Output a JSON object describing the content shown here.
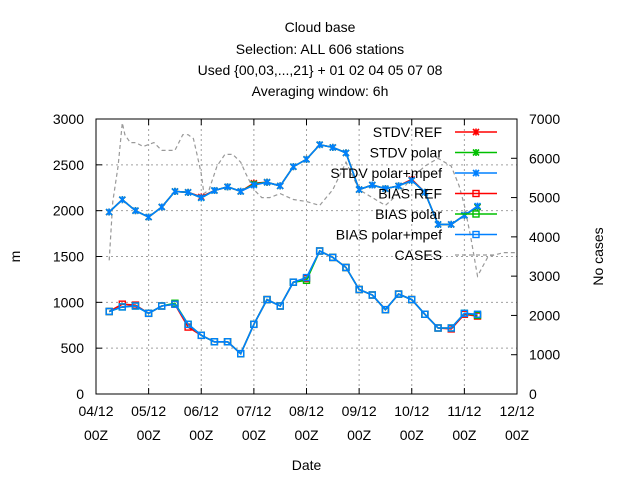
{
  "chart_data": {
    "type": "line",
    "title_lines": [
      "Cloud base",
      "Selection: ALL    606 stations",
      "Used {00,03,...,21} + 01 02 04 05 07 08",
      "Averaging window:  6h"
    ],
    "xlabel": "Date",
    "ylabel": "m",
    "y2label": "No cases",
    "x_ticks": [
      {
        "line1": "04/12",
        "line2": "00Z",
        "t": 0
      },
      {
        "line1": "05/12",
        "line2": "00Z",
        "t": 1
      },
      {
        "line1": "06/12",
        "line2": "00Z",
        "t": 2
      },
      {
        "line1": "07/12",
        "line2": "00Z",
        "t": 3
      },
      {
        "line1": "08/12",
        "line2": "00Z",
        "t": 4
      },
      {
        "line1": "09/12",
        "line2": "00Z",
        "t": 5
      },
      {
        "line1": "10/12",
        "line2": "00Z",
        "t": 6
      },
      {
        "line1": "11/12",
        "line2": "00Z",
        "t": 7
      },
      {
        "line1": "12/12",
        "line2": "00Z",
        "t": 8
      }
    ],
    "xlim": [
      0,
      8
    ],
    "ylim": [
      0,
      3000
    ],
    "y_ticks": [
      0,
      500,
      1000,
      1500,
      2000,
      2500,
      3000
    ],
    "y2lim": [
      0,
      7000
    ],
    "y2_ticks": [
      0,
      1000,
      2000,
      3000,
      4000,
      5000,
      6000,
      7000
    ],
    "grid": true,
    "legend_position": "top-right",
    "x_times": [
      0.25,
      0.5,
      0.75,
      1.0,
      1.25,
      1.5,
      1.75,
      2.0,
      2.25,
      2.5,
      2.75,
      3.0,
      3.25,
      3.5,
      3.75,
      4.0,
      4.25,
      4.5,
      4.75,
      5.0,
      5.25,
      5.5,
      5.75,
      6.0,
      6.25,
      6.5,
      6.75,
      7.0,
      7.25
    ],
    "series": [
      {
        "name": "STDV REF",
        "color": "#ff0000",
        "marker": "x",
        "axis": "y1",
        "values": [
          1985,
          2120,
          2000,
          1930,
          2040,
          2210,
          2200,
          2150,
          2220,
          2260,
          2210,
          2300,
          2310,
          2270,
          2480,
          2560,
          2720,
          2690,
          2630,
          2230,
          2280,
          2240,
          2270,
          2340,
          2200,
          1850,
          1850,
          1950,
          2040
        ]
      },
      {
        "name": "STDV polar",
        "color": "#00c000",
        "marker": "x",
        "axis": "y1",
        "values": [
          1985,
          2120,
          2000,
          1930,
          2040,
          2210,
          2200,
          2140,
          2220,
          2260,
          2210,
          2290,
          2310,
          2270,
          2480,
          2560,
          2720,
          2690,
          2630,
          2230,
          2280,
          2240,
          2270,
          2330,
          2200,
          1850,
          1850,
          1950,
          2040
        ]
      },
      {
        "name": "STDV polar+mpef",
        "color": "#0080ff",
        "marker": "x",
        "axis": "y1",
        "values": [
          1985,
          2120,
          2000,
          1930,
          2040,
          2210,
          2200,
          2140,
          2220,
          2260,
          2210,
          2280,
          2310,
          2270,
          2480,
          2560,
          2720,
          2690,
          2630,
          2230,
          2280,
          2240,
          2270,
          2330,
          2200,
          1850,
          1850,
          1950,
          2050
        ]
      },
      {
        "name": "BIAS REF",
        "color": "#ff0000",
        "marker": "square",
        "axis": "y1",
        "values": [
          900,
          980,
          970,
          880,
          960,
          980,
          730,
          640,
          570,
          570,
          440,
          760,
          1030,
          960,
          1220,
          1260,
          1560,
          1490,
          1380,
          1140,
          1080,
          920,
          1090,
          1030,
          870,
          720,
          710,
          870,
          850
        ]
      },
      {
        "name": "BIAS polar",
        "color": "#00c000",
        "marker": "square",
        "axis": "y1",
        "values": [
          900,
          950,
          960,
          880,
          960,
          990,
          760,
          640,
          570,
          570,
          440,
          760,
          1030,
          960,
          1220,
          1240,
          1560,
          1490,
          1380,
          1140,
          1080,
          920,
          1090,
          1030,
          870,
          720,
          720,
          880,
          860
        ]
      },
      {
        "name": "BIAS polar+mpef",
        "color": "#0080ff",
        "marker": "square",
        "axis": "y1",
        "values": [
          900,
          950,
          960,
          880,
          960,
          980,
          760,
          640,
          570,
          570,
          440,
          760,
          1030,
          960,
          1220,
          1270,
          1560,
          1490,
          1380,
          1140,
          1080,
          920,
          1090,
          1030,
          870,
          720,
          720,
          880,
          870
        ]
      },
      {
        "name": "CASES",
        "color": "#999999",
        "marker": "none",
        "dashed": true,
        "axis": "y2",
        "x": [
          0.25,
          0.32,
          0.42,
          0.5,
          0.55,
          0.65,
          0.75,
          0.9,
          1.0,
          1.1,
          1.25,
          1.5,
          1.65,
          1.75,
          1.85,
          1.92,
          2.0,
          2.05,
          2.15,
          2.3,
          2.45,
          2.6,
          2.75,
          2.85,
          3.0,
          3.15,
          3.3,
          3.5,
          3.75,
          4.0,
          4.25,
          4.5,
          4.75,
          5.0,
          5.25,
          5.5,
          5.75,
          6.0,
          6.25,
          6.5,
          6.75,
          6.9,
          7.0,
          7.12,
          7.25,
          7.45,
          7.75,
          8.0
        ],
        "values": [
          3400,
          4900,
          5800,
          6900,
          6600,
          6400,
          6400,
          6300,
          6350,
          6400,
          6200,
          6200,
          6600,
          6600,
          6500,
          6100,
          5600,
          5100,
          5200,
          5800,
          6100,
          6100,
          5900,
          5600,
          5200,
          5000,
          5000,
          5100,
          4950,
          4900,
          4800,
          5200,
          5900,
          5200,
          5000,
          4800,
          5100,
          5500,
          5800,
          6000,
          5800,
          5300,
          4800,
          4000,
          3000,
          3500,
          3600,
          3600
        ]
      }
    ]
  }
}
